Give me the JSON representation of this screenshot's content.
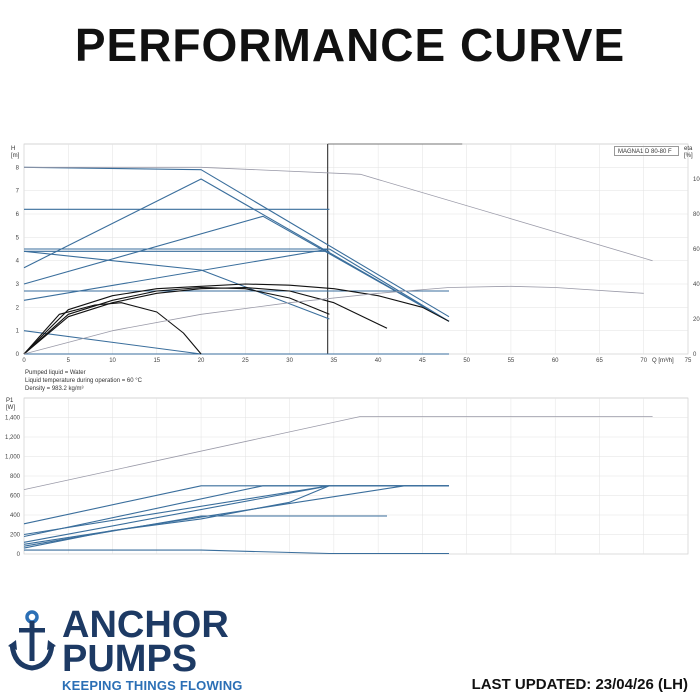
{
  "title": "PERFORMANCE CURVE",
  "model": "MAGNA1 D 80-80 F",
  "notes": [
    "Pumped liquid = Water",
    "Liquid temperature during operation = 60 °C",
    "Density = 983.2 kg/m³"
  ],
  "brand": {
    "line1": "ANCHOR",
    "line2": "PUMPS",
    "tagline": "KEEPING THINGS FLOWING",
    "logo_icon": "anchor-icon"
  },
  "updated": "LAST UPDATED: 23/04/26 (LH)",
  "colors": {
    "curve_blue": "#3a6e9c",
    "curve_dark": "#111111",
    "curve_gray": "#9a9aa8",
    "brand_navy": "#1d3a64",
    "brand_blue": "#2b6fb5"
  },
  "chart_data": [
    {
      "type": "line",
      "xlabel": "Q [m³/h]",
      "ylabel": "H [m]",
      "y2label": "eta [%]",
      "xlim": [
        0,
        75
      ],
      "ylim": [
        0,
        9
      ],
      "y2lim": [
        0,
        120
      ],
      "xticks": [
        0,
        5,
        10,
        15,
        20,
        25,
        30,
        35,
        40,
        45,
        50,
        55,
        60,
        65,
        70,
        75
      ],
      "yticks": [
        0,
        1,
        2,
        3,
        4,
        5,
        6,
        7,
        8
      ],
      "y2ticks": [
        0,
        20,
        40,
        60,
        80,
        100
      ],
      "grid": true,
      "duty_line_x": 34.3,
      "series": [
        {
          "style": "blue",
          "x": [
            0,
            20,
            48
          ],
          "y": [
            8.0,
            7.9,
            1.6
          ]
        },
        {
          "style": "blue",
          "x": [
            0,
            20,
            48
          ],
          "y": [
            3.7,
            7.5,
            1.4
          ]
        },
        {
          "style": "blue",
          "x": [
            0,
            27,
            48
          ],
          "y": [
            3.0,
            5.9,
            1.4
          ]
        },
        {
          "style": "blue",
          "x": [
            0,
            34.5
          ],
          "y": [
            6.2,
            6.2
          ]
        },
        {
          "style": "blue",
          "x": [
            0,
            34.5,
            48
          ],
          "y": [
            4.5,
            4.5,
            1.4
          ]
        },
        {
          "style": "blue",
          "x": [
            0,
            34.5
          ],
          "y": [
            4.4,
            4.4
          ]
        },
        {
          "style": "blue",
          "x": [
            0,
            34.5
          ],
          "y": [
            2.3,
            4.5
          ]
        },
        {
          "style": "blue",
          "x": [
            0,
            20,
            34.5
          ],
          "y": [
            4.4,
            3.6,
            1.5
          ]
        },
        {
          "style": "blue",
          "x": [
            0,
            48
          ],
          "y": [
            2.7,
            2.7
          ]
        },
        {
          "style": "blue",
          "x": [
            0,
            20
          ],
          "y": [
            1.0,
            0.0
          ]
        },
        {
          "style": "blue",
          "x": [
            0,
            48
          ],
          "y": [
            0.0,
            0.0
          ]
        },
        {
          "style": "dark",
          "x": [
            0,
            5,
            10,
            15,
            20,
            25,
            30,
            35,
            40,
            45,
            48
          ],
          "y": [
            0,
            1.9,
            2.5,
            2.8,
            2.9,
            3.0,
            2.95,
            2.8,
            2.5,
            2.0,
            1.4
          ]
        },
        {
          "style": "dark",
          "x": [
            0,
            5,
            10,
            15,
            20,
            25,
            30,
            34.5
          ],
          "y": [
            0,
            1.7,
            2.3,
            2.7,
            2.85,
            2.8,
            2.4,
            1.7
          ]
        },
        {
          "style": "dark",
          "x": [
            0,
            5,
            10,
            15,
            20,
            25,
            30,
            35,
            41
          ],
          "y": [
            0,
            1.6,
            2.2,
            2.6,
            2.8,
            2.85,
            2.7,
            2.2,
            1.1
          ]
        },
        {
          "style": "dark",
          "x": [
            0,
            4,
            8,
            11,
            15,
            18,
            20
          ],
          "y": [
            0,
            1.7,
            2.1,
            2.2,
            1.8,
            0.9,
            0
          ]
        },
        {
          "style": "gray",
          "x": [
            0,
            20,
            38,
            55,
            71
          ],
          "y": [
            8.0,
            8.0,
            7.7,
            5.8,
            4.0
          ]
        },
        {
          "style": "gray",
          "x": [
            0,
            10,
            20,
            30,
            40,
            48,
            55,
            60,
            70
          ],
          "y": [
            0,
            1.0,
            1.7,
            2.2,
            2.6,
            2.85,
            2.9,
            2.85,
            2.6
          ]
        }
      ]
    },
    {
      "type": "line",
      "ylabel": "P1 [W]",
      "xlim": [
        0,
        75
      ],
      "ylim": [
        0,
        1600
      ],
      "yticks": [
        0,
        200,
        400,
        600,
        800,
        1000,
        1200,
        1400
      ],
      "grid": true,
      "series": [
        {
          "style": "blue",
          "x": [
            0,
            20,
            34.5,
            48
          ],
          "y": [
            310,
            700,
            700,
            700
          ]
        },
        {
          "style": "blue",
          "x": [
            0,
            27,
            48
          ],
          "y": [
            180,
            700,
            700
          ]
        },
        {
          "style": "blue",
          "x": [
            0,
            34.5,
            48
          ],
          "y": [
            120,
            700,
            700
          ]
        },
        {
          "style": "blue",
          "x": [
            0,
            43,
            48
          ],
          "y": [
            100,
            700,
            700
          ]
        },
        {
          "style": "blue",
          "x": [
            0,
            20,
            41
          ],
          "y": [
            80,
            390,
            390
          ]
        },
        {
          "style": "blue",
          "x": [
            0,
            10,
            20,
            30,
            34.5
          ],
          "y": [
            60,
            240,
            360,
            530,
            700
          ]
        },
        {
          "style": "blue",
          "x": [
            0,
            34.5
          ],
          "y": [
            200,
            700
          ]
        },
        {
          "style": "blue",
          "x": [
            0,
            20,
            34.5,
            48
          ],
          "y": [
            40,
            40,
            5,
            5
          ]
        },
        {
          "style": "gray",
          "x": [
            0,
            38,
            71
          ],
          "y": [
            660,
            1410,
            1410
          ]
        }
      ]
    }
  ]
}
